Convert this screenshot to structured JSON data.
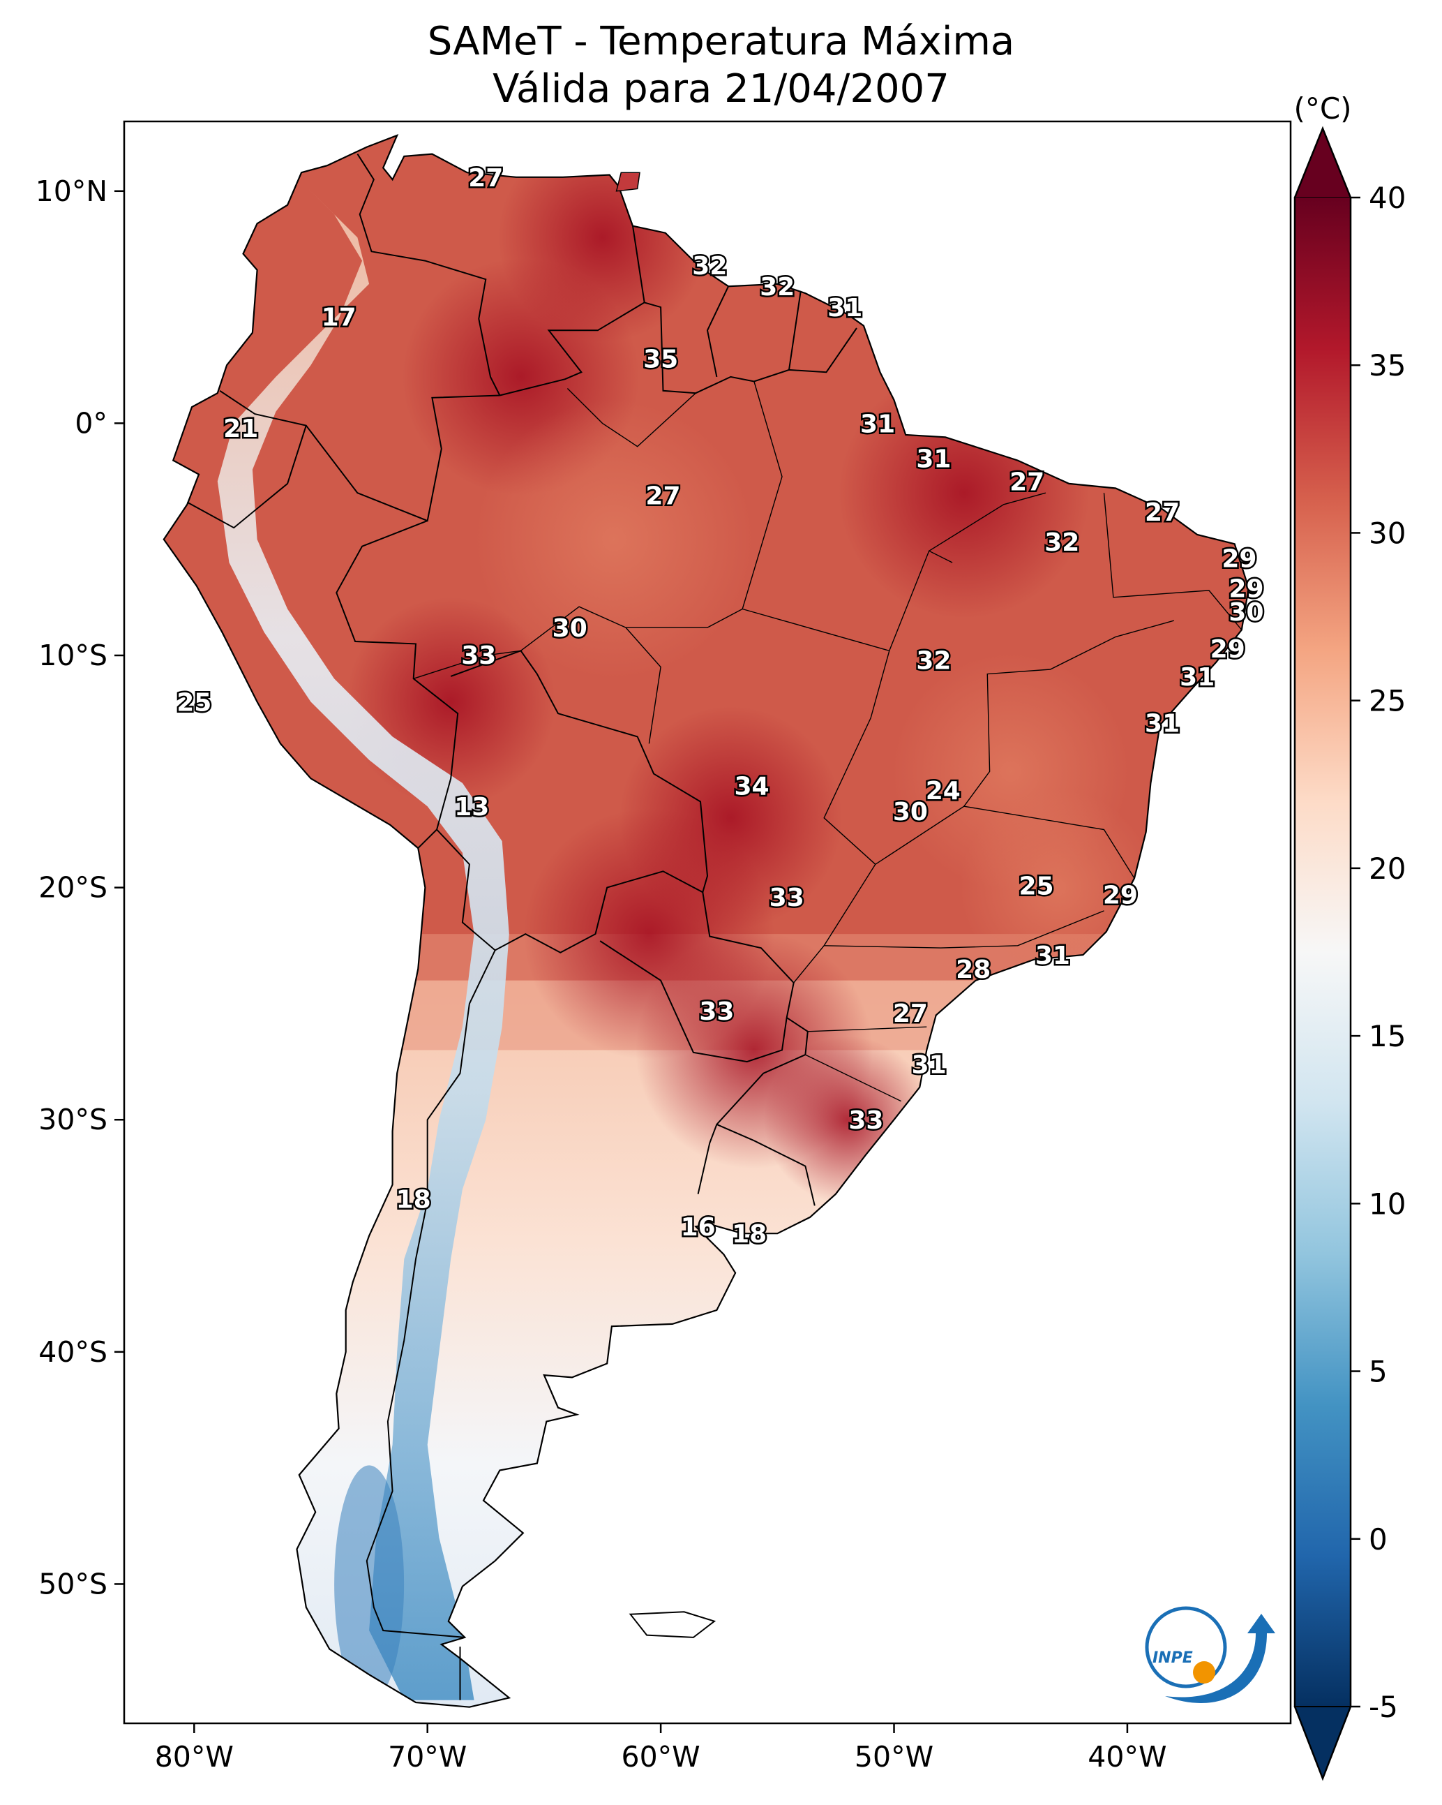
{
  "title": {
    "line1": "SAMeT - Temperatura Máxima",
    "line2": "Válida para 21/04/2007"
  },
  "map": {
    "region": "South America",
    "lon_range": [
      -83,
      -33
    ],
    "lat_range": [
      -56,
      13
    ],
    "lon_ticks": [
      "80°W",
      "70°W",
      "60°W",
      "50°W",
      "40°W"
    ],
    "lat_ticks": [
      "10°N",
      "0°",
      "10°S",
      "20°S",
      "30°S",
      "40°S",
      "50°S"
    ],
    "ocean_color": "#ffffff",
    "border_color": "#000000"
  },
  "colorbar": {
    "unit": "(°C)",
    "min": -5,
    "max": 40,
    "ticks": [
      "40",
      "35",
      "30",
      "25",
      "20",
      "15",
      "10",
      "5",
      "0",
      "-5"
    ],
    "colormap": "RdBu_r",
    "extend": "both",
    "colors": [
      "#053061",
      "#2166ac",
      "#4393c3",
      "#92c5de",
      "#d1e5f0",
      "#f7f7f7",
      "#fddbc7",
      "#f4a582",
      "#d6604d",
      "#b2182b",
      "#67001f"
    ]
  },
  "station_labels": [
    {
      "text": "27",
      "lon": -67.5,
      "lat": 10.6
    },
    {
      "text": "32",
      "lon": -57.9,
      "lat": 6.8
    },
    {
      "text": "32",
      "lon": -55.0,
      "lat": 5.9
    },
    {
      "text": "31",
      "lon": -52.1,
      "lat": 5.0
    },
    {
      "text": "17",
      "lon": -73.8,
      "lat": 4.6
    },
    {
      "text": "35",
      "lon": -60.0,
      "lat": 2.8
    },
    {
      "text": "21",
      "lon": -78.0,
      "lat": -0.2
    },
    {
      "text": "31",
      "lon": -50.7,
      "lat": 0.0
    },
    {
      "text": "31",
      "lon": -48.3,
      "lat": -1.5
    },
    {
      "text": "27",
      "lon": -59.9,
      "lat": -3.1
    },
    {
      "text": "27",
      "lon": -44.3,
      "lat": -2.5
    },
    {
      "text": "27",
      "lon": -38.5,
      "lat": -3.8
    },
    {
      "text": "32",
      "lon": -42.8,
      "lat": -5.1
    },
    {
      "text": "29",
      "lon": -35.2,
      "lat": -5.8
    },
    {
      "text": "29",
      "lon": -34.9,
      "lat": -7.1
    },
    {
      "text": "30",
      "lon": -34.9,
      "lat": -8.1
    },
    {
      "text": "30",
      "lon": -63.9,
      "lat": -8.8
    },
    {
      "text": "33",
      "lon": -67.8,
      "lat": -9.97
    },
    {
      "text": "32",
      "lon": -48.3,
      "lat": -10.2
    },
    {
      "text": "29",
      "lon": -35.7,
      "lat": -9.7
    },
    {
      "text": "31",
      "lon": -37.0,
      "lat": -10.9
    },
    {
      "text": "31",
      "lon": -38.5,
      "lat": -12.9
    },
    {
      "text": "25",
      "lon": -80.0,
      "lat": -12.0
    },
    {
      "text": "34",
      "lon": -56.1,
      "lat": -15.6
    },
    {
      "text": "24",
      "lon": -47.9,
      "lat": -15.8
    },
    {
      "text": "30",
      "lon": -49.3,
      "lat": -16.7
    },
    {
      "text": "13",
      "lon": -68.1,
      "lat": -16.5
    },
    {
      "text": "25",
      "lon": -43.9,
      "lat": -19.9
    },
    {
      "text": "29",
      "lon": -40.3,
      "lat": -20.3
    },
    {
      "text": "33",
      "lon": -54.6,
      "lat": -20.4
    },
    {
      "text": "31",
      "lon": -43.2,
      "lat": -22.9
    },
    {
      "text": "28",
      "lon": -46.6,
      "lat": -23.5
    },
    {
      "text": "33",
      "lon": -57.6,
      "lat": -25.3
    },
    {
      "text": "27",
      "lon": -49.3,
      "lat": -25.4
    },
    {
      "text": "31",
      "lon": -48.5,
      "lat": -27.6
    },
    {
      "text": "33",
      "lon": -51.2,
      "lat": -30.0
    },
    {
      "text": "18",
      "lon": -70.6,
      "lat": -33.4
    },
    {
      "text": "16",
      "lon": -58.4,
      "lat": -34.6
    },
    {
      "text": "18",
      "lon": -56.2,
      "lat": -34.9
    }
  ],
  "logo": {
    "text": "INPE",
    "blue": "#1a6fb6",
    "orange": "#f29400"
  }
}
